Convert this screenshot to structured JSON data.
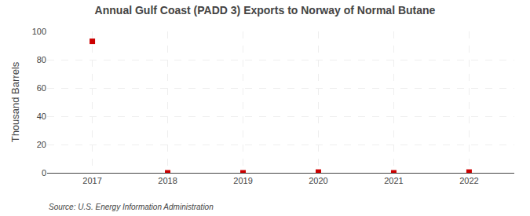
{
  "chart_data": {
    "type": "scatter",
    "title": "Annual Gulf Coast (PADD 3) Exports to Norway of Normal Butane",
    "ylabel": "Thousand Barrels",
    "source": "Source: U.S. Energy Information Administration",
    "x": [
      2017,
      2018,
      2019,
      2020,
      2021,
      2022
    ],
    "values": [
      93,
      0,
      0,
      0.5,
      0,
      0.5
    ],
    "color": "#cc0000",
    "marker": "square",
    "xlim": [
      2016.4,
      2022.6
    ],
    "xticks": [
      2017,
      2018,
      2019,
      2020,
      2021,
      2022
    ],
    "ylim": [
      0,
      100
    ],
    "yticks": [
      0,
      20,
      40,
      60,
      80,
      100
    ],
    "grid": true
  }
}
